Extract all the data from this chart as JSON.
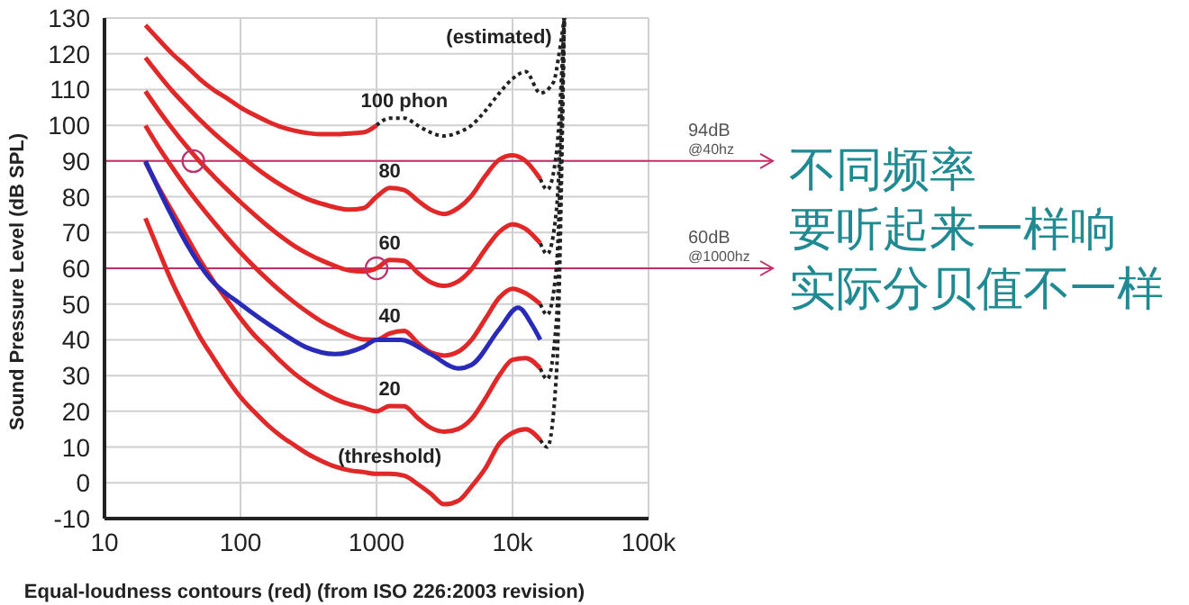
{
  "chart_data": {
    "type": "line",
    "xlabel": "Equal-loudness contours (red) (from ISO 226:2003 revision)",
    "ylabel": "Sound Pressure Level (dB SPL)",
    "log": "x",
    "xlim": [
      10,
      100000
    ],
    "xticks": [
      10,
      100,
      1000,
      {
        "value": 10000,
        "label": "10k"
      },
      {
        "value": 100000,
        "label": "100k"
      }
    ],
    "ylim": [
      -10,
      130
    ],
    "yticks": [
      -10,
      0,
      10,
      20,
      30,
      40,
      50,
      60,
      70,
      80,
      90,
      100,
      110,
      120,
      130
    ],
    "grid": true,
    "marker": "none",
    "line_style": "solid",
    "x": [
      20,
      25,
      31.5,
      40,
      50,
      63,
      80,
      100,
      125,
      160,
      200,
      250,
      315,
      400,
      500,
      630,
      800,
      1000,
      1250,
      1600,
      2000,
      2500,
      3150,
      4000,
      5000,
      6300,
      8000,
      10000,
      12500,
      16000
    ],
    "series": [
      {
        "color": "#e02828",
        "values": [
          74,
          65,
          56,
          48,
          41,
          35,
          29,
          24,
          20,
          16,
          13,
          10.5,
          8,
          6,
          4.5,
          3.5,
          3,
          2.5,
          2.5,
          2,
          -0.3,
          -3,
          -6,
          -5,
          -1,
          4,
          11,
          14,
          15,
          12
        ]
      },
      {
        "color": "#e02828",
        "values": [
          89.6,
          82.6,
          75.9,
          69,
          62.5,
          56.5,
          51,
          46,
          41.5,
          37.5,
          33.8,
          30.5,
          27.7,
          25.3,
          23.4,
          22,
          21,
          20,
          21.5,
          21.4,
          18.2,
          15.4,
          14.3,
          15.1,
          17.9,
          23.5,
          30.1,
          34.4,
          34.9,
          32
        ]
      },
      {
        "color": "#e02828",
        "values": [
          99.9,
          93.9,
          88.2,
          82.6,
          77.8,
          73.1,
          68.5,
          64.4,
          60.6,
          56.7,
          53.4,
          50.4,
          47.6,
          45,
          43.1,
          41.3,
          40.1,
          40,
          41.8,
          42.5,
          39.2,
          36.5,
          35.6,
          36.7,
          40,
          45.8,
          51.8,
          54.3,
          53,
          50
        ]
      },
      {
        "color": "#e02828",
        "values": [
          109.5,
          104.2,
          99.1,
          94.2,
          89.9,
          85.9,
          82,
          78.5,
          75.2,
          71.7,
          68.8,
          66.2,
          64,
          62.1,
          60.6,
          59.4,
          59.1,
          60,
          62.3,
          62.1,
          58.8,
          56.1,
          55.1,
          56.4,
          59.8,
          65.3,
          70.2,
          72.3,
          71,
          67
        ]
      },
      {
        "color": "#e02828",
        "values": [
          118.9,
          114.2,
          109.6,
          105.4,
          101.6,
          98,
          94.6,
          91.6,
          88.6,
          85.6,
          83.2,
          81.1,
          79.3,
          78,
          77,
          76.4,
          76.8,
          80,
          82.5,
          81.9,
          79,
          76.4,
          75.2,
          76.9,
          80.3,
          85.8,
          90.4,
          91.6,
          90,
          85
        ]
      },
      {
        "color": "#e02828",
        "x": [
          20,
          25,
          31.5,
          40,
          50,
          63,
          80,
          100,
          125,
          160,
          200,
          250,
          315,
          400,
          500,
          630,
          800,
          1000
        ],
        "values": [
          128,
          124,
          120,
          116.5,
          113,
          110,
          107.5,
          105,
          103,
          101,
          99.5,
          98.5,
          97.8,
          97.5,
          97.5,
          97.7,
          98,
          100
        ]
      },
      {
        "color": "#2a2ab8",
        "x": [
          20,
          30,
          40,
          60,
          100,
          200,
          300,
          500,
          800,
          1000,
          1500,
          2500,
          4000,
          5000,
          8000,
          11000,
          14000,
          16000
        ],
        "values": [
          90,
          76,
          67,
          57,
          50,
          42,
          38,
          36,
          38,
          40,
          40,
          36,
          32,
          33,
          43,
          49,
          44,
          40
        ]
      },
      {
        "color": "#222222",
        "line_style": "dotted",
        "x": [
          1000,
          1250,
          1600,
          2000,
          2500,
          3150,
          4000,
          5000,
          6300,
          8000,
          10000,
          12500,
          16000,
          20000,
          22000,
          24000
        ],
        "values": [
          100,
          102,
          102,
          100,
          98,
          97,
          98,
          100,
          104,
          109,
          113,
          115,
          109,
          112,
          120,
          130
        ]
      },
      {
        "color": "#222222",
        "line_style": "dotted",
        "x": [
          16000,
          18000,
          21000,
          24000
        ],
        "values": [
          85,
          82,
          92,
          130
        ]
      },
      {
        "color": "#222222",
        "line_style": "dotted",
        "x": [
          16000,
          18000,
          21000,
          24000
        ],
        "values": [
          67,
          64,
          76,
          130
        ]
      },
      {
        "color": "#222222",
        "line_style": "dotted",
        "x": [
          16000,
          18000,
          21000,
          24000
        ],
        "values": [
          50,
          47,
          60,
          130
        ]
      },
      {
        "color": "#222222",
        "line_style": "dotted",
        "x": [
          16000,
          18000,
          21000,
          24000
        ],
        "values": [
          32,
          29,
          45,
          130
        ]
      },
      {
        "color": "#222222",
        "line_style": "dotted",
        "x": [
          16000,
          18000,
          21000,
          24000
        ],
        "values": [
          12,
          10,
          30,
          130
        ]
      },
      {
        "type": "scatter",
        "marker": "circle",
        "color": "#c0306a",
        "x": [
          45,
          1000
        ],
        "values": [
          90,
          60
        ]
      }
    ],
    "ref_lines": [
      {
        "axis": "y",
        "value": 90,
        "label": "94dB @40hz",
        "color": "#c0306a"
      },
      {
        "axis": "y",
        "value": 60,
        "label": "60dB @1000hz",
        "color": "#c0306a"
      }
    ],
    "annotations": [
      {
        "text": "100 phon",
        "x": 1600,
        "y": 102
      },
      {
        "text": "80",
        "x": 1250,
        "y": 82.5
      },
      {
        "text": "60",
        "x": 1250,
        "y": 62.3
      },
      {
        "text": "40",
        "x": 1250,
        "y": 41.8
      },
      {
        "text": "20",
        "x": 1250,
        "y": 21.5
      },
      {
        "text": "(threshold)",
        "x": 1250,
        "y": 2.5
      },
      {
        "text": "(estimated)",
        "x": 22000,
        "y": 120
      },
      "不同频率",
      "要听起来一样响",
      "实际分贝值不一样"
    ]
  }
}
